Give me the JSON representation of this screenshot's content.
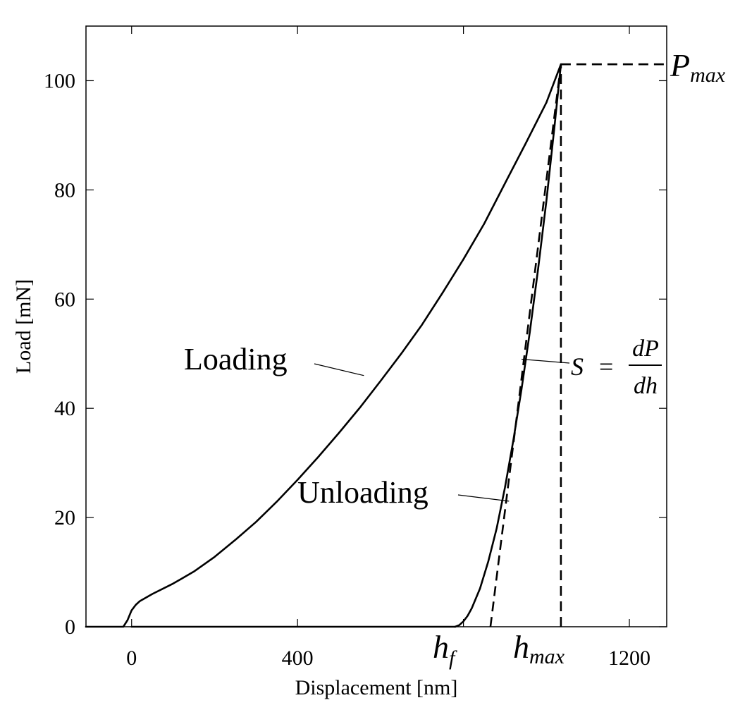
{
  "chart_data": {
    "type": "line",
    "title": "",
    "xlabel": "Displacement [nm]",
    "ylabel": "Load [mN]",
    "xlim": [
      -110,
      1290
    ],
    "ylim": [
      0,
      110
    ],
    "xticks": [
      0,
      400,
      800,
      1200
    ],
    "xtick_labels": [
      "0",
      "400",
      "",
      "1200"
    ],
    "yticks": [
      0,
      20,
      40,
      60,
      80,
      100
    ],
    "ytick_labels": [
      "0",
      "20",
      "40",
      "60",
      "80",
      "100"
    ],
    "grid": false,
    "series": [
      {
        "role": "loading",
        "x": [
          -110,
          -20,
          -10,
          0,
          10,
          20,
          50,
          100,
          150,
          200,
          250,
          300,
          350,
          400,
          450,
          500,
          550,
          600,
          650,
          700,
          750,
          800,
          850,
          900,
          950,
          1000
        ],
        "y": [
          0,
          0,
          1.2,
          3.0,
          4.0,
          4.7,
          6.0,
          7.9,
          10.1,
          12.8,
          15.9,
          19.2,
          22.9,
          26.9,
          31.1,
          35.5,
          40.1,
          45.0,
          50.0,
          55.3,
          61.2,
          67.3,
          73.8,
          81.2,
          88.5,
          96.0
        ]
      },
      {
        "role": "loading-top",
        "x": [
          1000,
          1035
        ],
        "y": [
          96.0,
          103
        ]
      },
      {
        "role": "unloading",
        "x": [
          1035,
          1020,
          1000,
          980,
          960,
          940,
          920,
          900,
          880,
          860,
          840,
          820,
          810,
          800,
          790,
          780
        ],
        "y": [
          103,
          92,
          78,
          65.5,
          54,
          43.5,
          34,
          25.5,
          18,
          12,
          7,
          3.4,
          2.0,
          1.0,
          0.3,
          0
        ]
      },
      {
        "role": "zero-baseline",
        "x": [
          0,
          780
        ],
        "y": [
          0,
          0
        ]
      },
      {
        "role": "stiffness-tangent",
        "style": "dashed",
        "x": [
          865,
          1035
        ],
        "y": [
          0,
          103
        ]
      },
      {
        "role": "hmax-vertical",
        "style": "dashed",
        "x": [
          1035,
          1035
        ],
        "y": [
          0,
          103
        ]
      },
      {
        "role": "pmax-horizontal",
        "style": "dashed",
        "x": [
          1035,
          1290
        ],
        "y": [
          103,
          103
        ]
      }
    ],
    "annotations": {
      "loading": {
        "text": "Loading",
        "anchor": [
          560,
          46
        ]
      },
      "unloading": {
        "text": "Unloading",
        "anchor": [
          910,
          23
        ]
      },
      "stiffness": {
        "lhs": "S",
        "eq": "=",
        "num": "dP",
        "den": "dh",
        "anchor": [
          940,
          49
        ]
      },
      "pmax": {
        "main": "P",
        "sub": "max"
      },
      "hf": {
        "main": "h",
        "sub": "f"
      },
      "hmax": {
        "main": "h",
        "sub": "max"
      }
    }
  }
}
